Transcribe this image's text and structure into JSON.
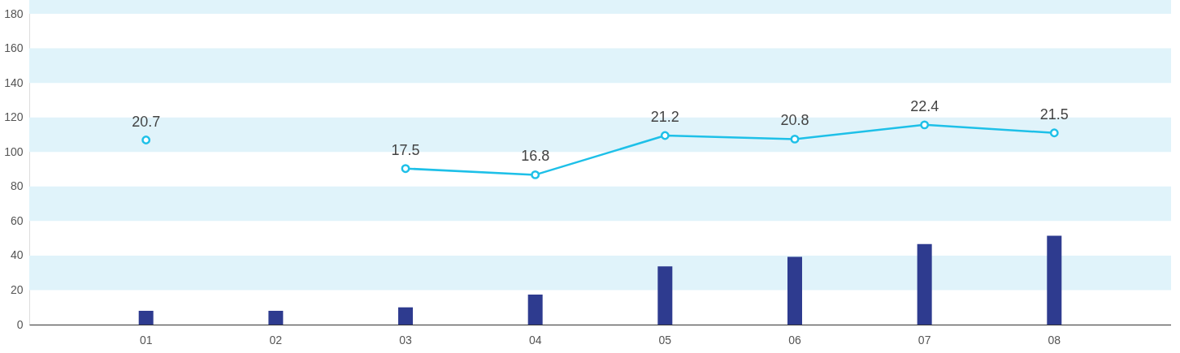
{
  "chart_data": {
    "type": "bar",
    "categories": [
      "01",
      "02",
      "03",
      "04",
      "05",
      "06",
      "07",
      "08"
    ],
    "series": [
      {
        "type": "bar",
        "color": "#2e3b8f",
        "values": [
          8,
          8,
          10,
          17.4,
          33.7,
          39.3,
          46.7,
          51.5
        ]
      },
      {
        "type": "line",
        "axis": "y2",
        "color": "#1ec0e8",
        "marker": "circle",
        "line_style": "solid",
        "values": [
          20.7,
          null,
          17.5,
          16.8,
          21.2,
          20.8,
          22.4,
          21.5
        ],
        "value_labels": [
          "20.7",
          null,
          "17.5",
          "16.8",
          "21.2",
          "20.8",
          "22.4",
          "21.5"
        ]
      }
    ],
    "ylim": [
      0,
      188
    ],
    "yticks": [
      0,
      20,
      40,
      60,
      80,
      100,
      120,
      140,
      160,
      180
    ],
    "y2lim": [
      0,
      36.4
    ],
    "grid": false,
    "bands": [
      {
        "axis": "y",
        "from": 20,
        "to": 40,
        "color": "#e0f3fa"
      },
      {
        "axis": "y",
        "from": 60,
        "to": 80,
        "color": "#e0f3fa"
      },
      {
        "axis": "y",
        "from": 100,
        "to": 120,
        "color": "#e0f3fa"
      },
      {
        "axis": "y",
        "from": 140,
        "to": 160,
        "color": "#e0f3fa"
      },
      {
        "axis": "y",
        "from": 180,
        "to": 188,
        "color": "#e0f3fa"
      }
    ]
  }
}
